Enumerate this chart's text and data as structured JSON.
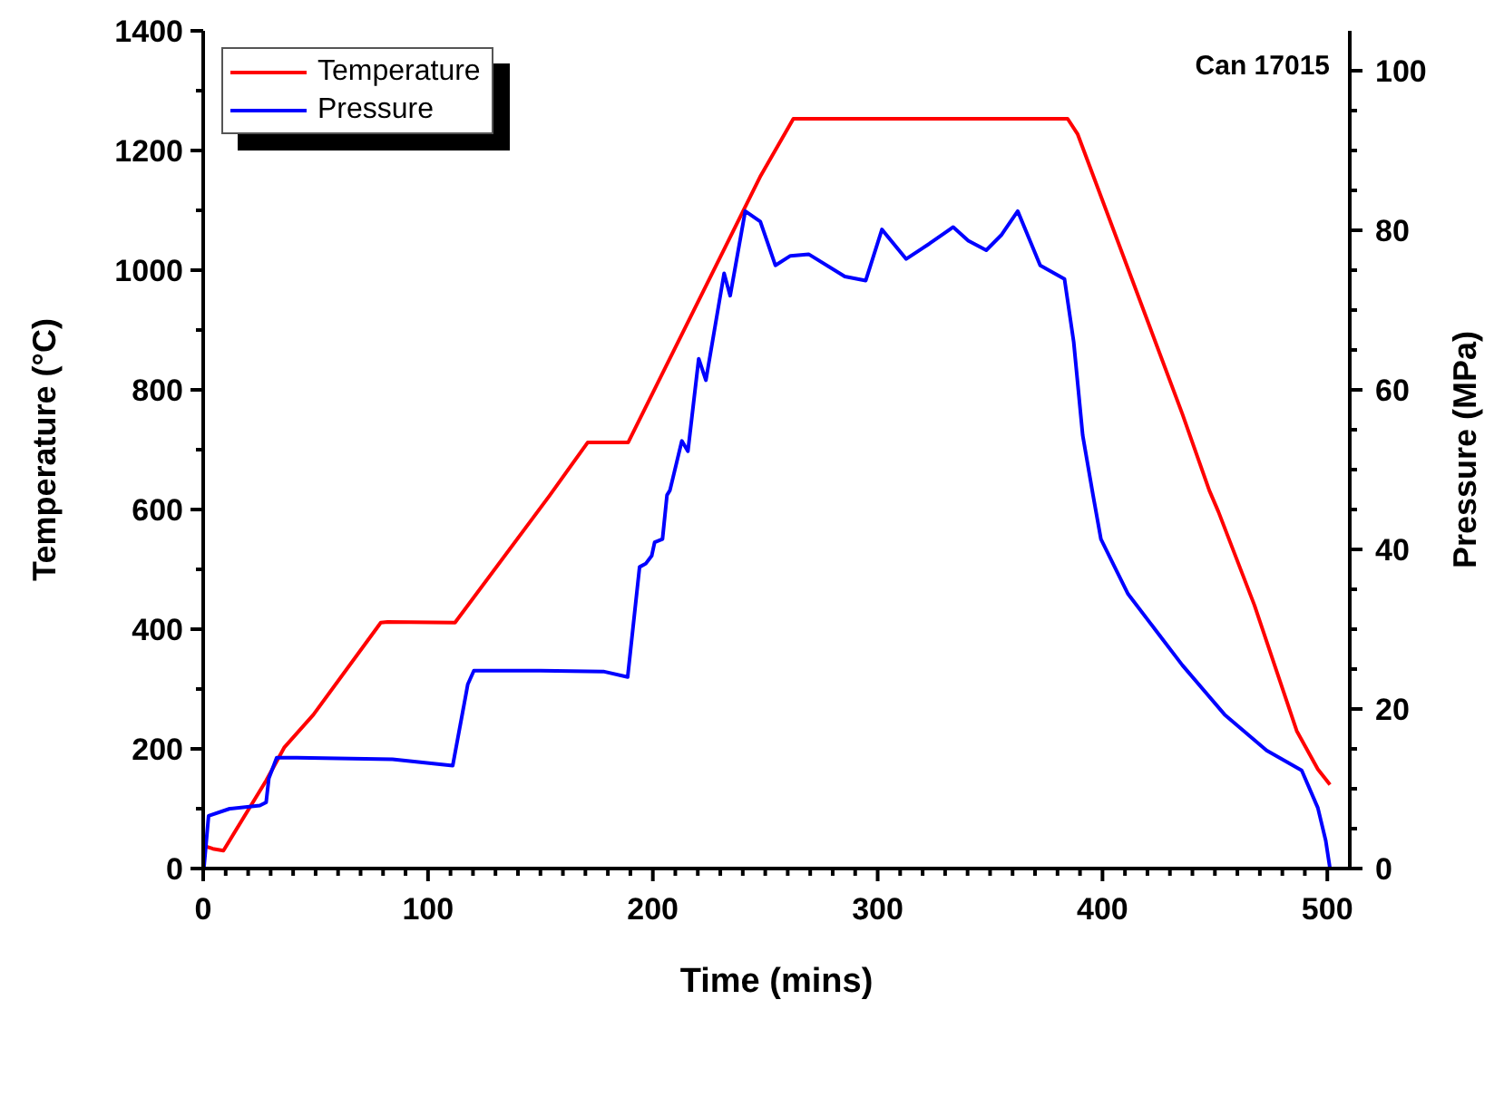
{
  "chart_data": {
    "type": "line",
    "xlabel": "Time (mins)",
    "ylabel": "Temperature (°C)",
    "y2label": "Pressure (MPa)",
    "annotations": [
      "Can 17015"
    ],
    "legend": "top left",
    "xlim": [
      0,
      510
    ],
    "ylim": [
      0,
      1400
    ],
    "y2lim": [
      0,
      105
    ],
    "xticks": [
      0,
      {
        "value": 10,
        "label": null
      },
      {
        "value": 20,
        "label": null
      },
      {
        "value": 30,
        "label": null
      },
      {
        "value": 40,
        "label": null
      },
      {
        "value": 50,
        "label": null
      },
      {
        "value": 60,
        "label": null
      },
      {
        "value": 70,
        "label": null
      },
      {
        "value": 80,
        "label": null
      },
      {
        "value": 90,
        "label": null
      },
      100,
      {
        "value": 110,
        "label": null
      },
      {
        "value": 120,
        "label": null
      },
      {
        "value": 130,
        "label": null
      },
      {
        "value": 140,
        "label": null
      },
      {
        "value": 150,
        "label": null
      },
      {
        "value": 160,
        "label": null
      },
      {
        "value": 170,
        "label": null
      },
      {
        "value": 180,
        "label": null
      },
      {
        "value": 190,
        "label": null
      },
      200,
      {
        "value": 210,
        "label": null
      },
      {
        "value": 220,
        "label": null
      },
      {
        "value": 230,
        "label": null
      },
      {
        "value": 240,
        "label": null
      },
      {
        "value": 250,
        "label": null
      },
      {
        "value": 260,
        "label": null
      },
      {
        "value": 270,
        "label": null
      },
      {
        "value": 280,
        "label": null
      },
      {
        "value": 290,
        "label": null
      },
      300,
      {
        "value": 310,
        "label": null
      },
      {
        "value": 320,
        "label": null
      },
      {
        "value": 330,
        "label": null
      },
      {
        "value": 340,
        "label": null
      },
      {
        "value": 350,
        "label": null
      },
      {
        "value": 360,
        "label": null
      },
      {
        "value": 370,
        "label": null
      },
      {
        "value": 380,
        "label": null
      },
      {
        "value": 390,
        "label": null
      },
      400,
      {
        "value": 410,
        "label": null
      },
      {
        "value": 420,
        "label": null
      },
      {
        "value": 430,
        "label": null
      },
      {
        "value": 440,
        "label": null
      },
      {
        "value": 450,
        "label": null
      },
      {
        "value": 460,
        "label": null
      },
      {
        "value": 470,
        "label": null
      },
      {
        "value": 480,
        "label": null
      },
      {
        "value": 490,
        "label": null
      },
      500
    ],
    "yticks": [
      0,
      {
        "value": 100,
        "label": null
      },
      200,
      {
        "value": 300,
        "label": null
      },
      400,
      {
        "value": 500,
        "label": null
      },
      600,
      {
        "value": 700,
        "label": null
      },
      800,
      {
        "value": 900,
        "label": null
      },
      1000,
      {
        "value": 1100,
        "label": null
      },
      1200,
      {
        "value": 1300,
        "label": null
      },
      1400
    ],
    "y2ticks": [
      0,
      {
        "value": 5,
        "label": null
      },
      {
        "value": 10,
        "label": null
      },
      {
        "value": 15,
        "label": null
      },
      20,
      {
        "value": 25,
        "label": null
      },
      {
        "value": 30,
        "label": null
      },
      {
        "value": 35,
        "label": null
      },
      40,
      {
        "value": 45,
        "label": null
      },
      {
        "value": 50,
        "label": null
      },
      {
        "value": 55,
        "label": null
      },
      60,
      {
        "value": 65,
        "label": null
      },
      {
        "value": 70,
        "label": null
      },
      {
        "value": 75,
        "label": null
      },
      80,
      {
        "value": 85,
        "label": null
      },
      {
        "value": 90,
        "label": null
      },
      {
        "value": 95,
        "label": null
      },
      100
    ],
    "series": [
      {
        "name": "Temperature",
        "color": "#ff0000",
        "x": [
          0.3,
          4.3,
          9,
          28,
          36,
          49,
          79,
          82,
          112,
          154,
          171,
          189,
          248,
          262.5,
          384.5,
          389,
          435.5,
          447.5,
          451.6,
          467.6,
          486.4,
          495.8,
          501.2
        ],
        "values": [
          38,
          33,
          30,
          147,
          202,
          257,
          411,
          412,
          411,
          623,
          712,
          712,
          1158,
          1253,
          1253,
          1227,
          760,
          632,
          596,
          440,
          230,
          166,
          140
        ]
      },
      {
        "name": "Pressure",
        "color": "#0000ff",
        "axis": "y2",
        "x": [
          0.3,
          2.4,
          11.8,
          25.2,
          28,
          29.2,
          32.7,
          41.6,
          84.2,
          111,
          117.7,
          120.4,
          150,
          178,
          188.8,
          194.1,
          196.8,
          199.5,
          200.8,
          204.3,
          206.3,
          207.6,
          212.9,
          215.6,
          220.4,
          223.6,
          231.7,
          234.4,
          241.1,
          247.8,
          254.5,
          261.2,
          269.3,
          285.4,
          294.7,
          301.9,
          312.7,
          322.9,
          333.6,
          340.3,
          348.3,
          355,
          362.3,
          372.3,
          383.1,
          387.2,
          391.2,
          395.8,
          399.3,
          411.4,
          435.5,
          454.3,
          473,
          488.6,
          495.8,
          499.3,
          501.2
        ],
        "values": [
          0,
          6.6,
          7.5,
          7.9,
          8.3,
          11.3,
          13.9,
          13.9,
          13.7,
          12.9,
          23.1,
          24.8,
          24.8,
          24.7,
          24,
          37.8,
          38.2,
          39.2,
          40.9,
          41.3,
          46.8,
          47.4,
          53.6,
          52.3,
          63.9,
          61.2,
          74.6,
          71.8,
          82.4,
          81.1,
          75.6,
          76.8,
          77,
          74.2,
          73.7,
          80.1,
          76.4,
          78.3,
          80.4,
          78.7,
          77.5,
          79.4,
          82.4,
          75.6,
          73.9,
          66,
          54.3,
          46.8,
          41.3,
          34.4,
          25.5,
          19.3,
          14.8,
          12.3,
          7.6,
          3.5,
          0
        ]
      }
    ]
  }
}
